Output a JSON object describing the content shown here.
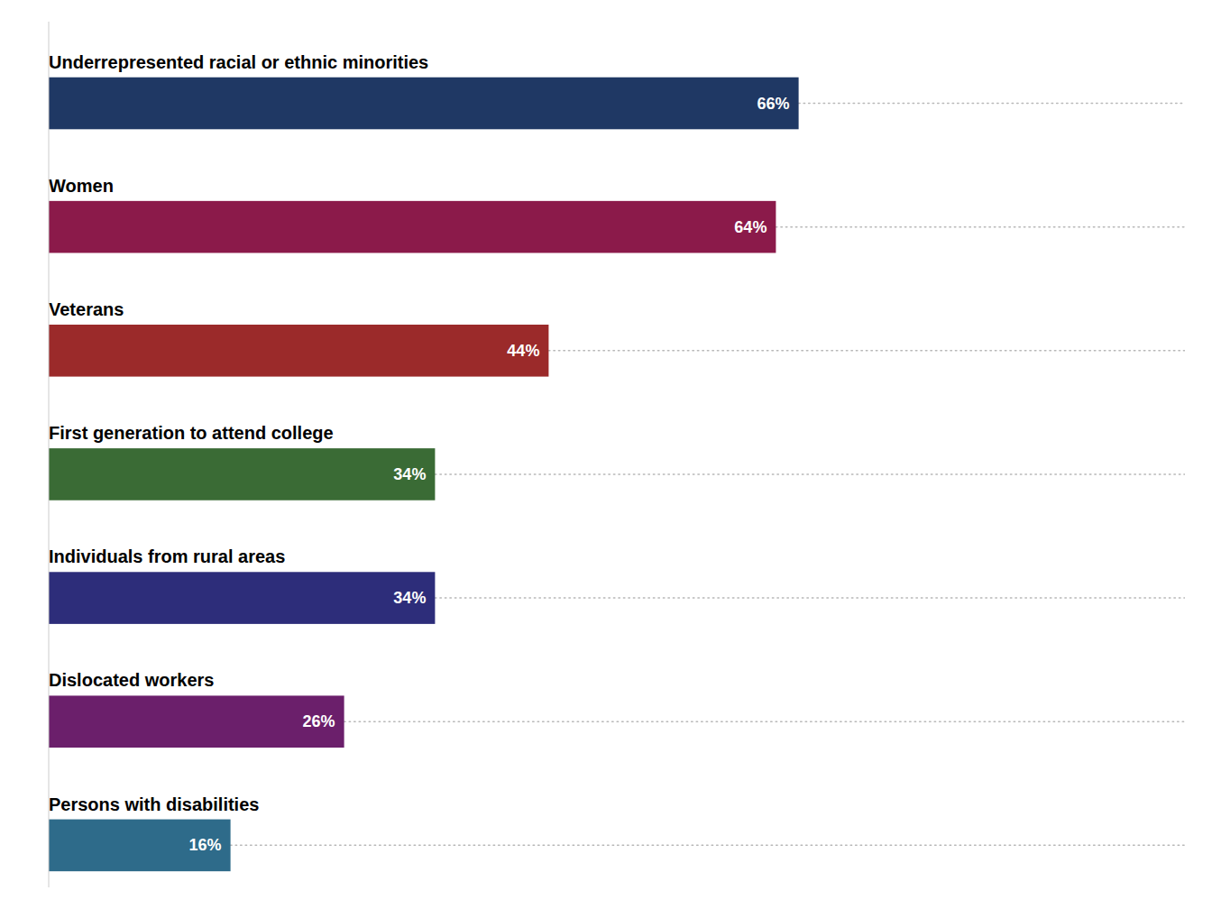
{
  "chart_data": {
    "type": "bar",
    "orientation": "horizontal",
    "categories": [
      "Underrepresented racial or ethnic minorities",
      "Women",
      "Veterans",
      "First generation to attend college",
      "Individuals from rural areas",
      "Dislocated workers",
      "Persons with disabilities"
    ],
    "values": [
      66,
      64,
      44,
      34,
      34,
      26,
      16
    ],
    "value_labels": [
      "66%",
      "64%",
      "44%",
      "34%",
      "34%",
      "26%",
      "16%"
    ],
    "colors": [
      "#1f3864",
      "#8b1a4a",
      "#9b2a2a",
      "#3a6b35",
      "#2d2d7a",
      "#6b1f6b",
      "#2e6b8a"
    ],
    "xlim": [
      0,
      100
    ],
    "data_labels": true,
    "tick_labels": false
  }
}
